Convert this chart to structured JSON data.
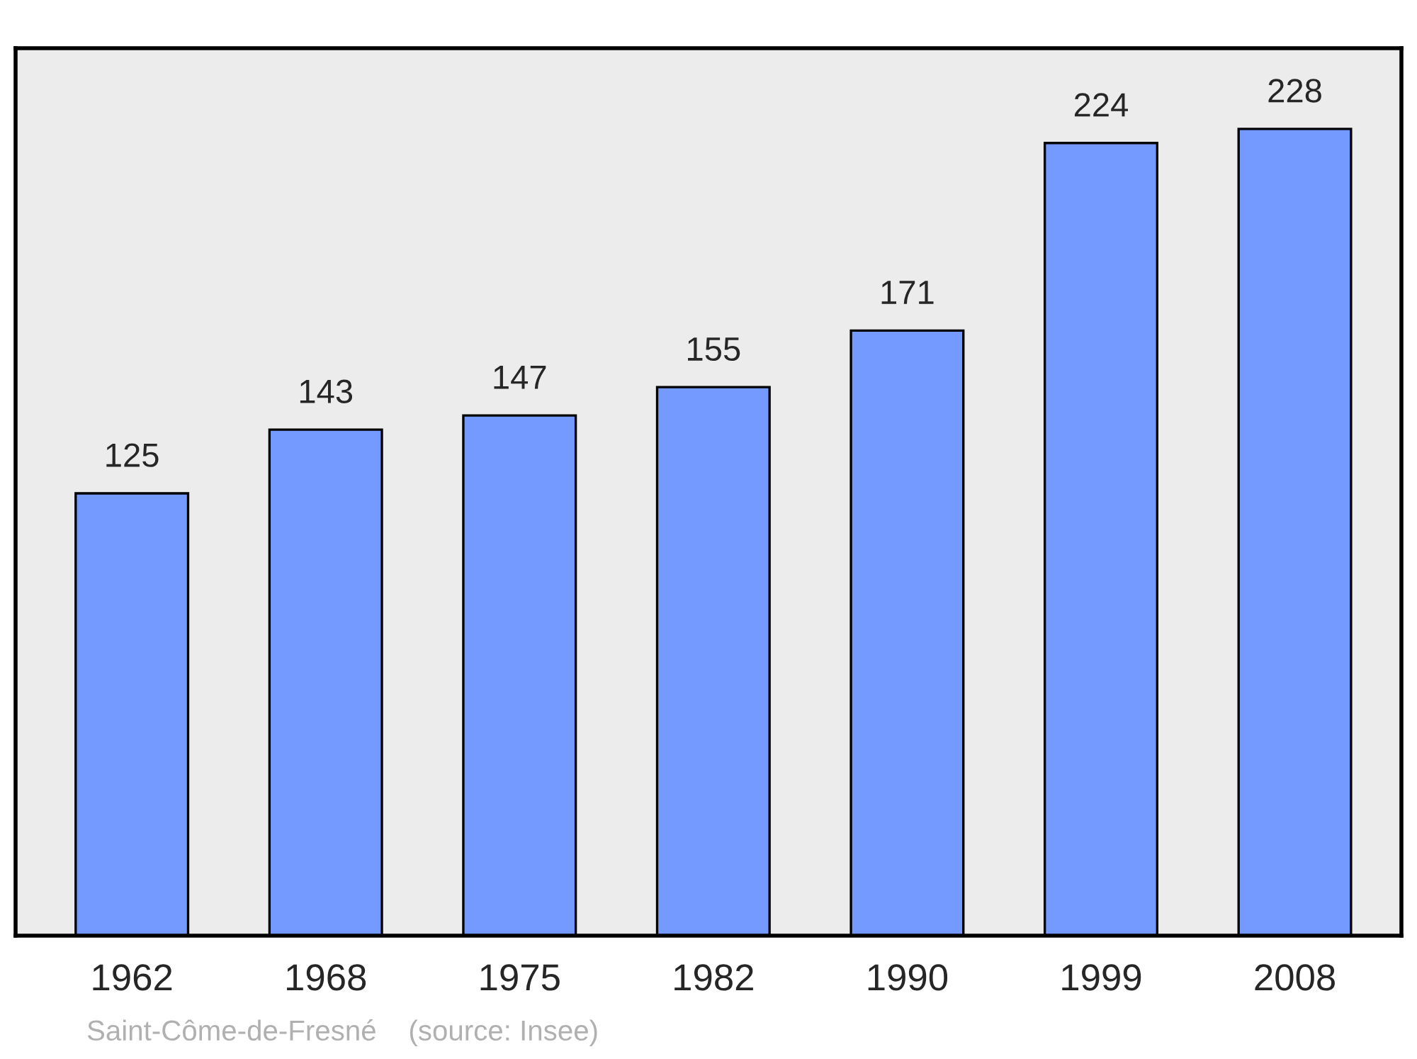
{
  "chart_data": {
    "type": "bar",
    "categories": [
      "1962",
      "1968",
      "1975",
      "1982",
      "1990",
      "1999",
      "2008"
    ],
    "values": [
      125,
      143,
      147,
      155,
      171,
      224,
      228
    ],
    "color": "#7499ff",
    "data_labels": true,
    "grid": false,
    "legend": false,
    "annotations": [
      "Saint-Côme-de-Fresné    (source: Insee)"
    ]
  }
}
